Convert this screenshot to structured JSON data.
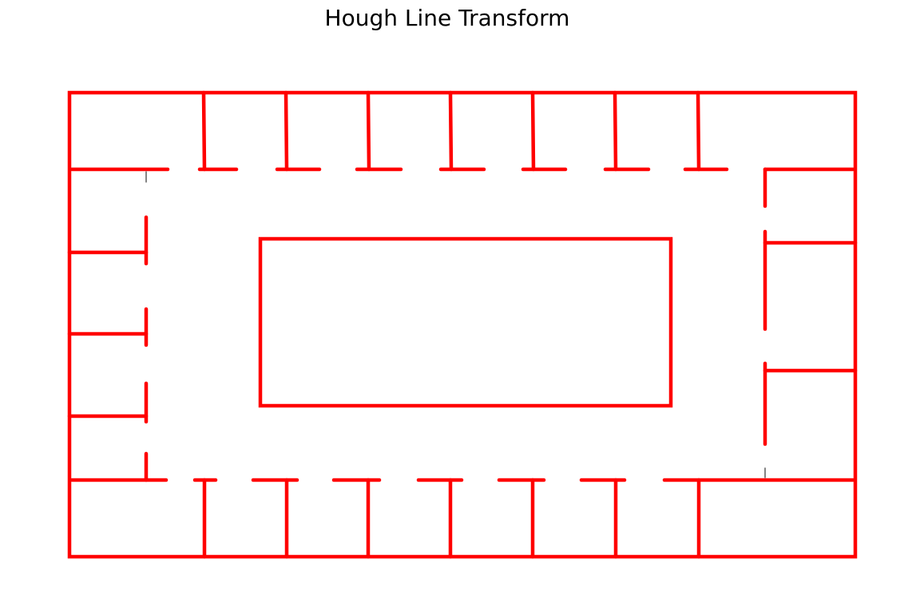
{
  "title": "Hough Line Transform",
  "colors": {
    "line": "#ff0000",
    "faint_line": "#333333",
    "background": "#ffffff"
  }
}
